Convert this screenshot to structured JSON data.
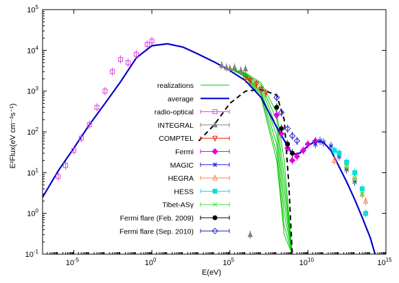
{
  "chart_data": {
    "type": "scatter",
    "xlabel": "E(eV)",
    "ylabel": "E²Flux(eV cm⁻²s⁻¹)",
    "x_scale": "log",
    "y_scale": "log",
    "xlim": [
      1e-07,
      1000000000000000.0
    ],
    "ylim": [
      0.1,
      100000
    ],
    "grid": false,
    "legend_position": "center",
    "x_ticks": [
      {
        "value": 1e-05,
        "base": "10",
        "exp": "-5"
      },
      {
        "value": 1,
        "base": "10",
        "exp": "0"
      },
      {
        "value": 100000.0,
        "base": "10",
        "exp": "5"
      },
      {
        "value": 10000000000.0,
        "base": "10",
        "exp": "10"
      },
      {
        "value": 1000000000000000.0,
        "base": "10",
        "exp": "15"
      }
    ],
    "y_ticks": [
      {
        "value": 0.1,
        "base": "10",
        "exp": "-1"
      },
      {
        "value": 1,
        "base": "10",
        "exp": "0"
      },
      {
        "value": 10,
        "base": "10",
        "exp": "1"
      },
      {
        "value": 100,
        "base": "10",
        "exp": "2"
      },
      {
        "value": 1000,
        "base": "10",
        "exp": "3"
      },
      {
        "value": 10000,
        "base": "10",
        "exp": "4"
      },
      {
        "value": 100000,
        "base": "10",
        "exp": "5"
      }
    ],
    "series": [
      {
        "name": "realizations",
        "color": "#00c800",
        "style": "line"
      },
      {
        "name": "average",
        "color": "#0000cc",
        "style": "line"
      },
      {
        "name": "radio-optical",
        "color": "#e040e0",
        "marker": "open-square"
      },
      {
        "name": "INTEGRAL",
        "color": "#808080",
        "marker": "filled-triangle"
      },
      {
        "name": "COMPTEL",
        "color": "#e02000",
        "marker": "open-triangle-down"
      },
      {
        "name": "Fermi",
        "color": "#e000e0",
        "marker": "filled-diamond"
      },
      {
        "name": "MAGIC",
        "color": "#2020e0",
        "marker": "star"
      },
      {
        "name": "HEGRA",
        "color": "#ff8040",
        "marker": "open-triangle"
      },
      {
        "name": "HESS",
        "color": "#00e0e0",
        "marker": "filled-square"
      },
      {
        "name": "Tibet-ASγ",
        "color": "#40e040",
        "marker": "cross"
      },
      {
        "name": "Fermi flare (Feb. 2009)",
        "color": "#000000",
        "marker": "filled-circle"
      },
      {
        "name": "Fermi flare (Sep. 2010)",
        "color": "#2020c0",
        "marker": "open-diamond"
      }
    ],
    "average_curve": {
      "x": [
        1e-07,
        1e-06,
        1e-05,
        0.0001,
        0.001,
        0.01,
        0.1,
        1,
        10,
        100,
        1000,
        10000.0,
        100000.0,
        1000000.0,
        10000000.0,
        100000000.0,
        1000000000.0,
        3000000000.0,
        10000000000.0,
        30000000000.0,
        100000000000.0,
        300000000000.0,
        1000000000000.0,
        3000000000000.0,
        10000000000000.0,
        30000000000000.0,
        100000000000000.0,
        200000000000000.0
      ],
      "y": [
        2.5,
        11,
        40,
        150,
        500,
        1700,
        6500,
        13000,
        14500,
        12000,
        8000,
        5200,
        3200,
        1800,
        700,
        130,
        28,
        30,
        45,
        60,
        55,
        35,
        14,
        6,
        2.2,
        0.8,
        0.25,
        0.1
      ]
    },
    "realization_curves": {
      "x": [
        100000.0,
        1000000.0,
        10000000.0,
        100000000.0,
        300000000.0,
        1000000000.0
      ],
      "y_sets": [
        [
          3600,
          2800,
          1600,
          300,
          20,
          0.1
        ],
        [
          3600,
          2700,
          1400,
          200,
          8,
          0.1
        ],
        [
          3600,
          2600,
          1200,
          130,
          4,
          0.1
        ],
        [
          3600,
          2500,
          1000,
          80,
          2,
          0.1
        ],
        [
          3600,
          2400,
          900,
          50,
          1,
          0.1
        ],
        [
          3600,
          2300,
          800,
          30,
          0.5,
          0.1
        ],
        [
          3600,
          2200,
          700,
          20,
          0.3,
          0.1
        ]
      ]
    },
    "dashed_curve": {
      "x": [
        1000.0,
        10000.0,
        100000.0,
        1000000.0,
        10000000.0,
        100000000.0,
        300000000.0,
        600000000.0,
        1000000000.0
      ],
      "y": [
        60,
        150,
        500,
        1000,
        1100,
        800,
        200,
        5,
        0.1
      ]
    },
    "points": {
      "radio-optical": {
        "x": [
          1e-06,
          3e-06,
          1e-05,
          3e-05,
          0.0001,
          0.0003,
          0.001,
          0.003,
          0.01,
          0.03,
          0.1,
          0.5,
          1
        ],
        "y": [
          8,
          15,
          35,
          70,
          150,
          400,
          1000,
          3000,
          6000,
          5000,
          8000,
          14000,
          17000
        ]
      },
      "INTEGRAL": {
        "x": [
          30000.0,
          60000.0,
          100000.0,
          200000.0,
          500000.0,
          1000000.0,
          2000000.0
        ],
        "y": [
          4300,
          3800,
          3600,
          3800,
          3200,
          3500,
          0.3
        ]
      },
      "COMPTEL": {
        "x": [
          1000000.0,
          2000000.0,
          5000000.0,
          10000000.0,
          20000000.0
        ],
        "y": [
          2000,
          1800,
          1500,
          1100,
          900
        ]
      },
      "Fermi": {
        "x": [
          100000000.0,
          200000000.0,
          500000000.0,
          1000000000.0,
          2000000000.0,
          5000000000.0,
          10000000000.0,
          30000000000.0
        ],
        "y": [
          260,
          90,
          40,
          20,
          25,
          35,
          50,
          60
        ]
      },
      "MAGIC": {
        "x": [
          30000000000.0,
          60000000000.0,
          100000000000.0,
          300000000000.0,
          1000000000000.0,
          3000000000000.0,
          10000000000000.0
        ],
        "y": [
          50,
          60,
          55,
          45,
          25,
          12,
          6
        ]
      },
      "HEGRA": {
        "x": [
          500000000000.0,
          1000000000000.0,
          3000000000000.0,
          10000000000000.0,
          30000000000000.0,
          50000000000000.0
        ],
        "y": [
          20,
          30,
          15,
          8,
          3,
          2
        ]
      },
      "HESS": {
        "x": [
          500000000000.0,
          1000000000000.0,
          3000000000000.0,
          10000000000000.0,
          30000000000000.0,
          50000000000000.0
        ],
        "y": [
          35,
          30,
          18,
          10,
          4,
          1
        ]
      },
      "Tibet-ASγ": {
        "x": [
          3000000000000.0,
          10000000000000.0,
          30000000000000.0
        ],
        "y": [
          14,
          7,
          3
        ]
      },
      "Fermi flare (Feb. 2009)": {
        "x": [
          100000000.0,
          200000000.0,
          500000000.0,
          1000000000.0
        ],
        "y": [
          400,
          120,
          50,
          30
        ]
      },
      "Fermi flare (Sep. 2010)": {
        "x": [
          100000000.0,
          200000000.0,
          500000000.0,
          1000000000.0,
          2000000000.0
        ],
        "y": [
          700,
          300,
          120,
          80,
          60
        ]
      }
    }
  }
}
